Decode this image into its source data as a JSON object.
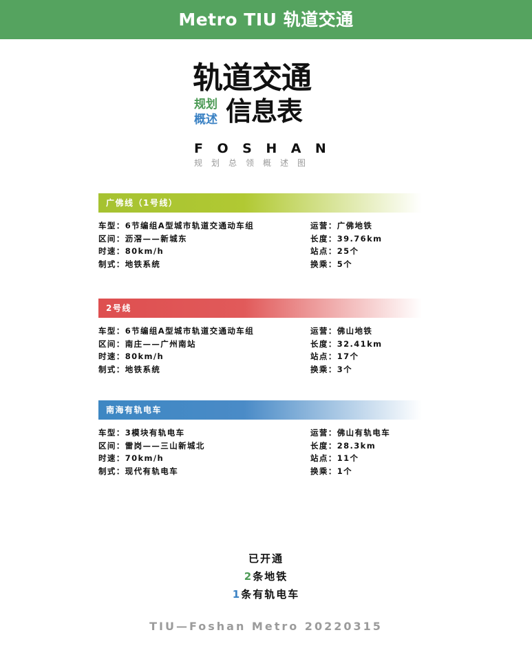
{
  "header": {
    "title": "Metro TIU 轨道交通"
  },
  "logo": {
    "line1": "轨道交通",
    "sub1": "规划",
    "sub2": "概述",
    "line2": "信息表",
    "en": "FOSHAN",
    "cn": "规划总领概述图"
  },
  "lines": [
    {
      "name": "广佛线（1号线）",
      "color": "#a6c231",
      "rows": [
        [
          "车型：6节编组A型城市轨道交通动车组",
          "运营：广佛地铁"
        ],
        [
          "区间：沥滘——新城东",
          "长度：39.76km"
        ],
        [
          "时速：80km/h",
          "站点：25个"
        ],
        [
          "制式：地铁系统",
          "换乘：5个"
        ]
      ]
    },
    {
      "name": "2号线",
      "color": "#de4f50",
      "rows": [
        [
          "车型：6节编组A型城市轨道交通动车组",
          "运营：佛山地铁"
        ],
        [
          "区间：南庄——广州南站",
          "长度：32.41km"
        ],
        [
          "时速：80km/h",
          "站点：17个"
        ],
        [
          "制式：地铁系统",
          "换乘：3个"
        ]
      ]
    },
    {
      "name": "南海有轨电车",
      "color": "#3d87c3",
      "rows": [
        [
          "车型：3模块有轨电车",
          "运营：佛山有轨电车"
        ],
        [
          "区间：雷岗——三山新城北",
          "长度：28.3km"
        ],
        [
          "时速：70km/h",
          "站点：11个"
        ],
        [
          "制式：现代有轨电车",
          "换乘：1个"
        ]
      ]
    }
  ],
  "summary": {
    "title": "已开通",
    "metro_count": "2",
    "metro_text": "条地铁",
    "tram_count": "1",
    "tram_text": "条有轨电车"
  },
  "footer": "TIU—Foshan Metro 20220315"
}
